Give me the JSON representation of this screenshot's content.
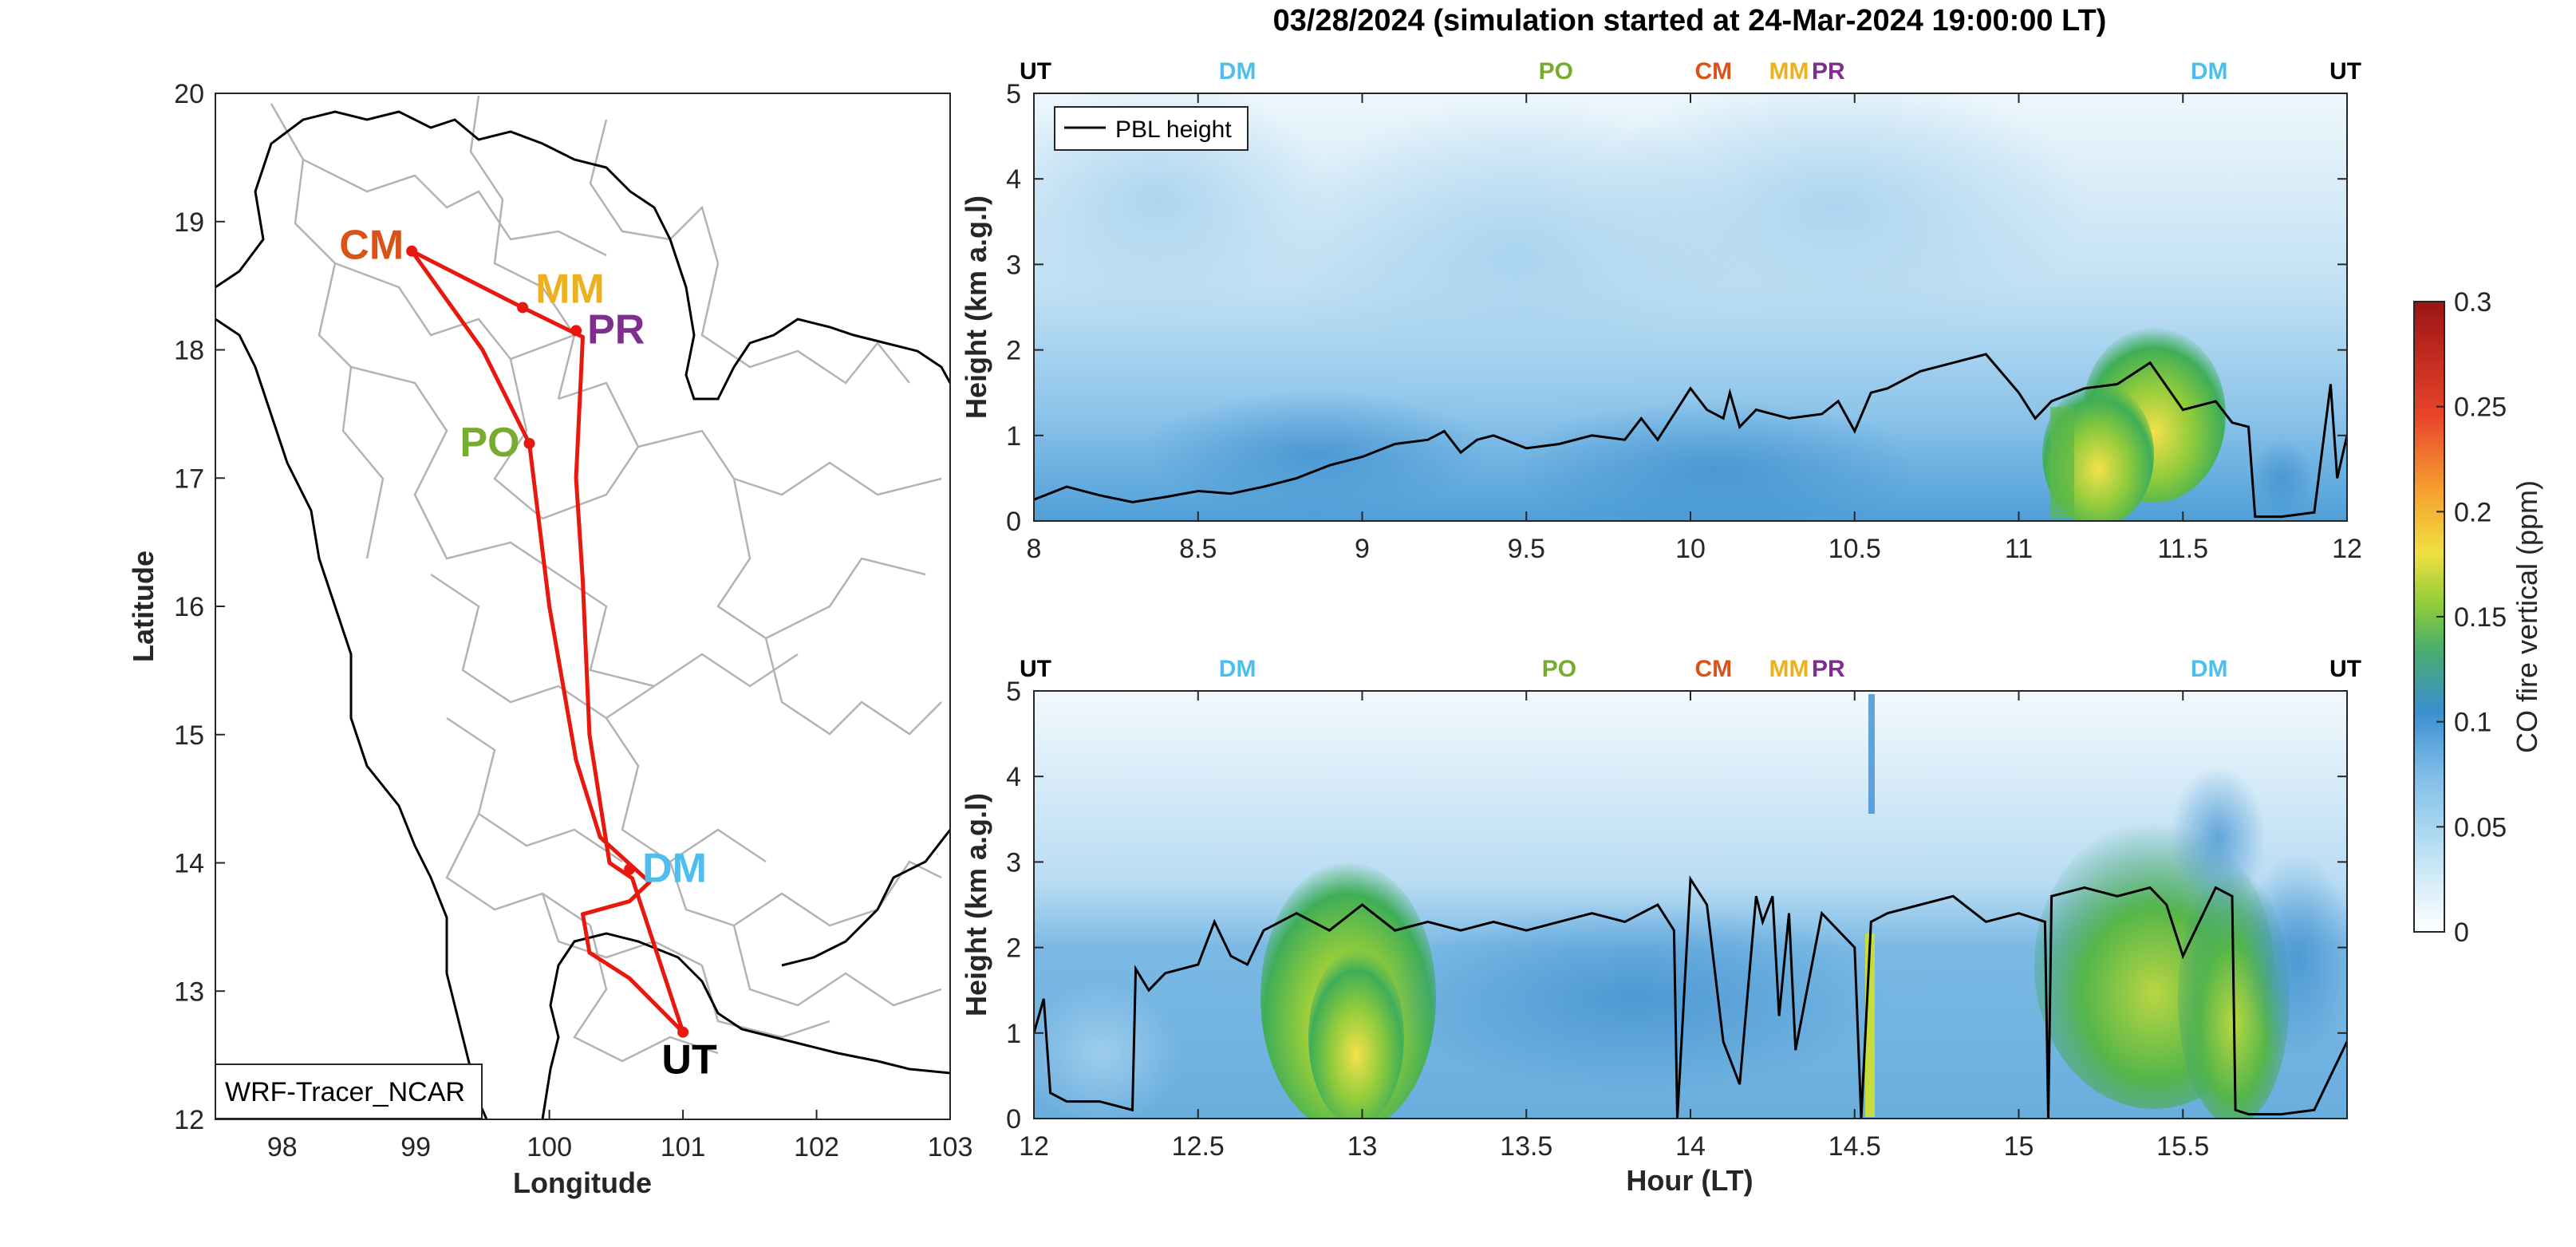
{
  "title": "03/28/2024 (simulation started at 24-Mar-2024 19:00:00 LT)",
  "colors": {
    "route": "#e8180f",
    "CM": "#d95319",
    "MM": "#edb120",
    "PR": "#7e2f8e",
    "PO": "#77ac30",
    "DM": "#4dbeee",
    "UT": "#000000"
  },
  "map": {
    "xlabel": "Longitude",
    "ylabel": "Latitude",
    "xlim": [
      97.5,
      103
    ],
    "ylim": [
      12,
      20
    ],
    "xticks": [
      "98",
      "99",
      "100",
      "101",
      "102",
      "103"
    ],
    "yticks": [
      "12",
      "13",
      "14",
      "15",
      "16",
      "17",
      "18",
      "19",
      "20"
    ],
    "model_label": "WRF-Tracer_NCAR",
    "sites": [
      {
        "code": "CM",
        "lon": 98.97,
        "lat": 18.77
      },
      {
        "code": "MM",
        "lon": 99.8,
        "lat": 18.33
      },
      {
        "code": "PR",
        "lon": 100.2,
        "lat": 18.15
      },
      {
        "code": "PO",
        "lon": 99.85,
        "lat": 17.27
      },
      {
        "code": "DM",
        "lon": 100.6,
        "lat": 13.95
      },
      {
        "code": "UT",
        "lon": 101.0,
        "lat": 12.68
      }
    ],
    "route": [
      [
        101.0,
        12.68
      ],
      [
        100.62,
        13.88
      ],
      [
        100.45,
        14.0
      ],
      [
        100.3,
        15.0
      ],
      [
        100.25,
        16.2
      ],
      [
        100.2,
        17.0
      ],
      [
        100.25,
        18.1
      ],
      [
        99.8,
        18.33
      ],
      [
        98.97,
        18.77
      ],
      [
        99.5,
        18.0
      ],
      [
        99.85,
        17.27
      ],
      [
        100.0,
        16.0
      ],
      [
        100.2,
        14.8
      ],
      [
        100.38,
        14.2
      ],
      [
        100.75,
        13.85
      ],
      [
        100.6,
        13.7
      ],
      [
        100.25,
        13.6
      ],
      [
        100.3,
        13.3
      ],
      [
        100.6,
        13.1
      ],
      [
        101.0,
        12.68
      ]
    ]
  },
  "chart_data": [
    {
      "type": "heatmap",
      "xlim": [
        8,
        12
      ],
      "ylim": [
        0,
        5
      ],
      "xticks": [
        "8",
        "8.5",
        "9",
        "9.5",
        "10",
        "10.5",
        "11",
        "11.5",
        "12"
      ],
      "yticks": [
        "0",
        "1",
        "2",
        "3",
        "4",
        "5"
      ],
      "ylabel": "Height (km a.g.l)",
      "xlabel": "",
      "legend": {
        "label": "PBL height",
        "position": "top-left"
      },
      "site_markers": [
        {
          "code": "UT",
          "x": 8.0
        },
        {
          "code": "DM",
          "x": 8.62
        },
        {
          "code": "PO",
          "x": 9.59
        },
        {
          "code": "CM",
          "x": 10.07
        },
        {
          "code": "MM",
          "x": 10.3
        },
        {
          "code": "PR",
          "x": 10.42
        },
        {
          "code": "DM",
          "x": 11.58
        },
        {
          "code": "UT",
          "x": 12.0
        }
      ],
      "pbl_height": {
        "x": [
          8.0,
          8.1,
          8.2,
          8.3,
          8.4,
          8.5,
          8.6,
          8.7,
          8.8,
          8.9,
          9.0,
          9.1,
          9.2,
          9.25,
          9.3,
          9.35,
          9.4,
          9.5,
          9.6,
          9.7,
          9.8,
          9.85,
          9.9,
          10.0,
          10.05,
          10.1,
          10.12,
          10.15,
          10.2,
          10.3,
          10.4,
          10.45,
          10.5,
          10.55,
          10.6,
          10.7,
          10.8,
          10.9,
          11.0,
          11.05,
          11.1,
          11.2,
          11.3,
          11.4,
          11.5,
          11.6,
          11.65,
          11.7,
          11.72,
          11.8,
          11.9,
          11.95,
          11.97,
          12.0
        ],
        "y": [
          0.25,
          0.4,
          0.3,
          0.22,
          0.28,
          0.35,
          0.32,
          0.4,
          0.5,
          0.65,
          0.75,
          0.9,
          0.95,
          1.05,
          0.8,
          0.95,
          1.0,
          0.85,
          0.9,
          1.0,
          0.95,
          1.2,
          0.95,
          1.55,
          1.3,
          1.2,
          1.5,
          1.1,
          1.3,
          1.2,
          1.25,
          1.4,
          1.05,
          1.5,
          1.55,
          1.75,
          1.85,
          1.95,
          1.5,
          1.2,
          1.4,
          1.55,
          1.6,
          1.85,
          1.3,
          1.4,
          1.15,
          1.1,
          0.05,
          0.05,
          0.1,
          1.6,
          0.5,
          1.0
        ]
      }
    },
    {
      "type": "heatmap",
      "xlim": [
        12,
        16
      ],
      "ylim": [
        0,
        5
      ],
      "xticks": [
        "12",
        "12.5",
        "13",
        "13.5",
        "14",
        "14.5",
        "15",
        "15.5"
      ],
      "yticks": [
        "0",
        "1",
        "2",
        "3",
        "4",
        "5"
      ],
      "ylabel": "Height (km a.g.l)",
      "xlabel": "Hour (LT)",
      "site_markers": [
        {
          "code": "UT",
          "x": 12.0
        },
        {
          "code": "DM",
          "x": 12.62
        },
        {
          "code": "PO",
          "x": 13.6
        },
        {
          "code": "CM",
          "x": 14.07
        },
        {
          "code": "MM",
          "x": 14.3
        },
        {
          "code": "PR",
          "x": 14.42
        },
        {
          "code": "DM",
          "x": 15.58
        },
        {
          "code": "UT",
          "x": 16.0
        }
      ],
      "pbl_height": {
        "x": [
          12.0,
          12.03,
          12.05,
          12.1,
          12.2,
          12.3,
          12.31,
          12.35,
          12.4,
          12.5,
          12.55,
          12.6,
          12.65,
          12.7,
          12.8,
          12.9,
          13.0,
          13.1,
          13.2,
          13.3,
          13.4,
          13.5,
          13.6,
          13.7,
          13.8,
          13.9,
          13.95,
          13.96,
          14.0,
          14.05,
          14.1,
          14.15,
          14.2,
          14.22,
          14.25,
          14.27,
          14.3,
          14.32,
          14.4,
          14.45,
          14.5,
          14.52,
          14.55,
          14.6,
          14.7,
          14.8,
          14.9,
          15.0,
          15.08,
          15.09,
          15.1,
          15.2,
          15.3,
          15.4,
          15.45,
          15.5,
          15.6,
          15.65,
          15.66,
          15.7,
          15.8,
          15.9,
          15.95,
          16.0
        ],
        "y": [
          1.0,
          1.4,
          0.3,
          0.2,
          0.2,
          0.1,
          1.75,
          1.5,
          1.7,
          1.8,
          2.3,
          1.9,
          1.8,
          2.2,
          2.4,
          2.2,
          2.5,
          2.2,
          2.3,
          2.2,
          2.3,
          2.2,
          2.3,
          2.4,
          2.3,
          2.5,
          2.2,
          0.0,
          2.8,
          2.5,
          0.9,
          0.4,
          2.6,
          2.3,
          2.6,
          1.2,
          2.4,
          0.8,
          2.4,
          2.2,
          2.0,
          0.0,
          2.3,
          2.4,
          2.5,
          2.6,
          2.3,
          2.4,
          2.3,
          0.0,
          2.6,
          2.7,
          2.6,
          2.7,
          2.5,
          1.9,
          2.7,
          2.6,
          0.1,
          0.05,
          0.05,
          0.1,
          0.5,
          0.9
        ]
      }
    }
  ],
  "colorbar": {
    "label": "CO fire vertical (ppm)",
    "ticks": [
      "0",
      "0.05",
      "0.1",
      "0.15",
      "0.2",
      "0.25",
      "0.3"
    ],
    "range": [
      0,
      0.3
    ]
  }
}
